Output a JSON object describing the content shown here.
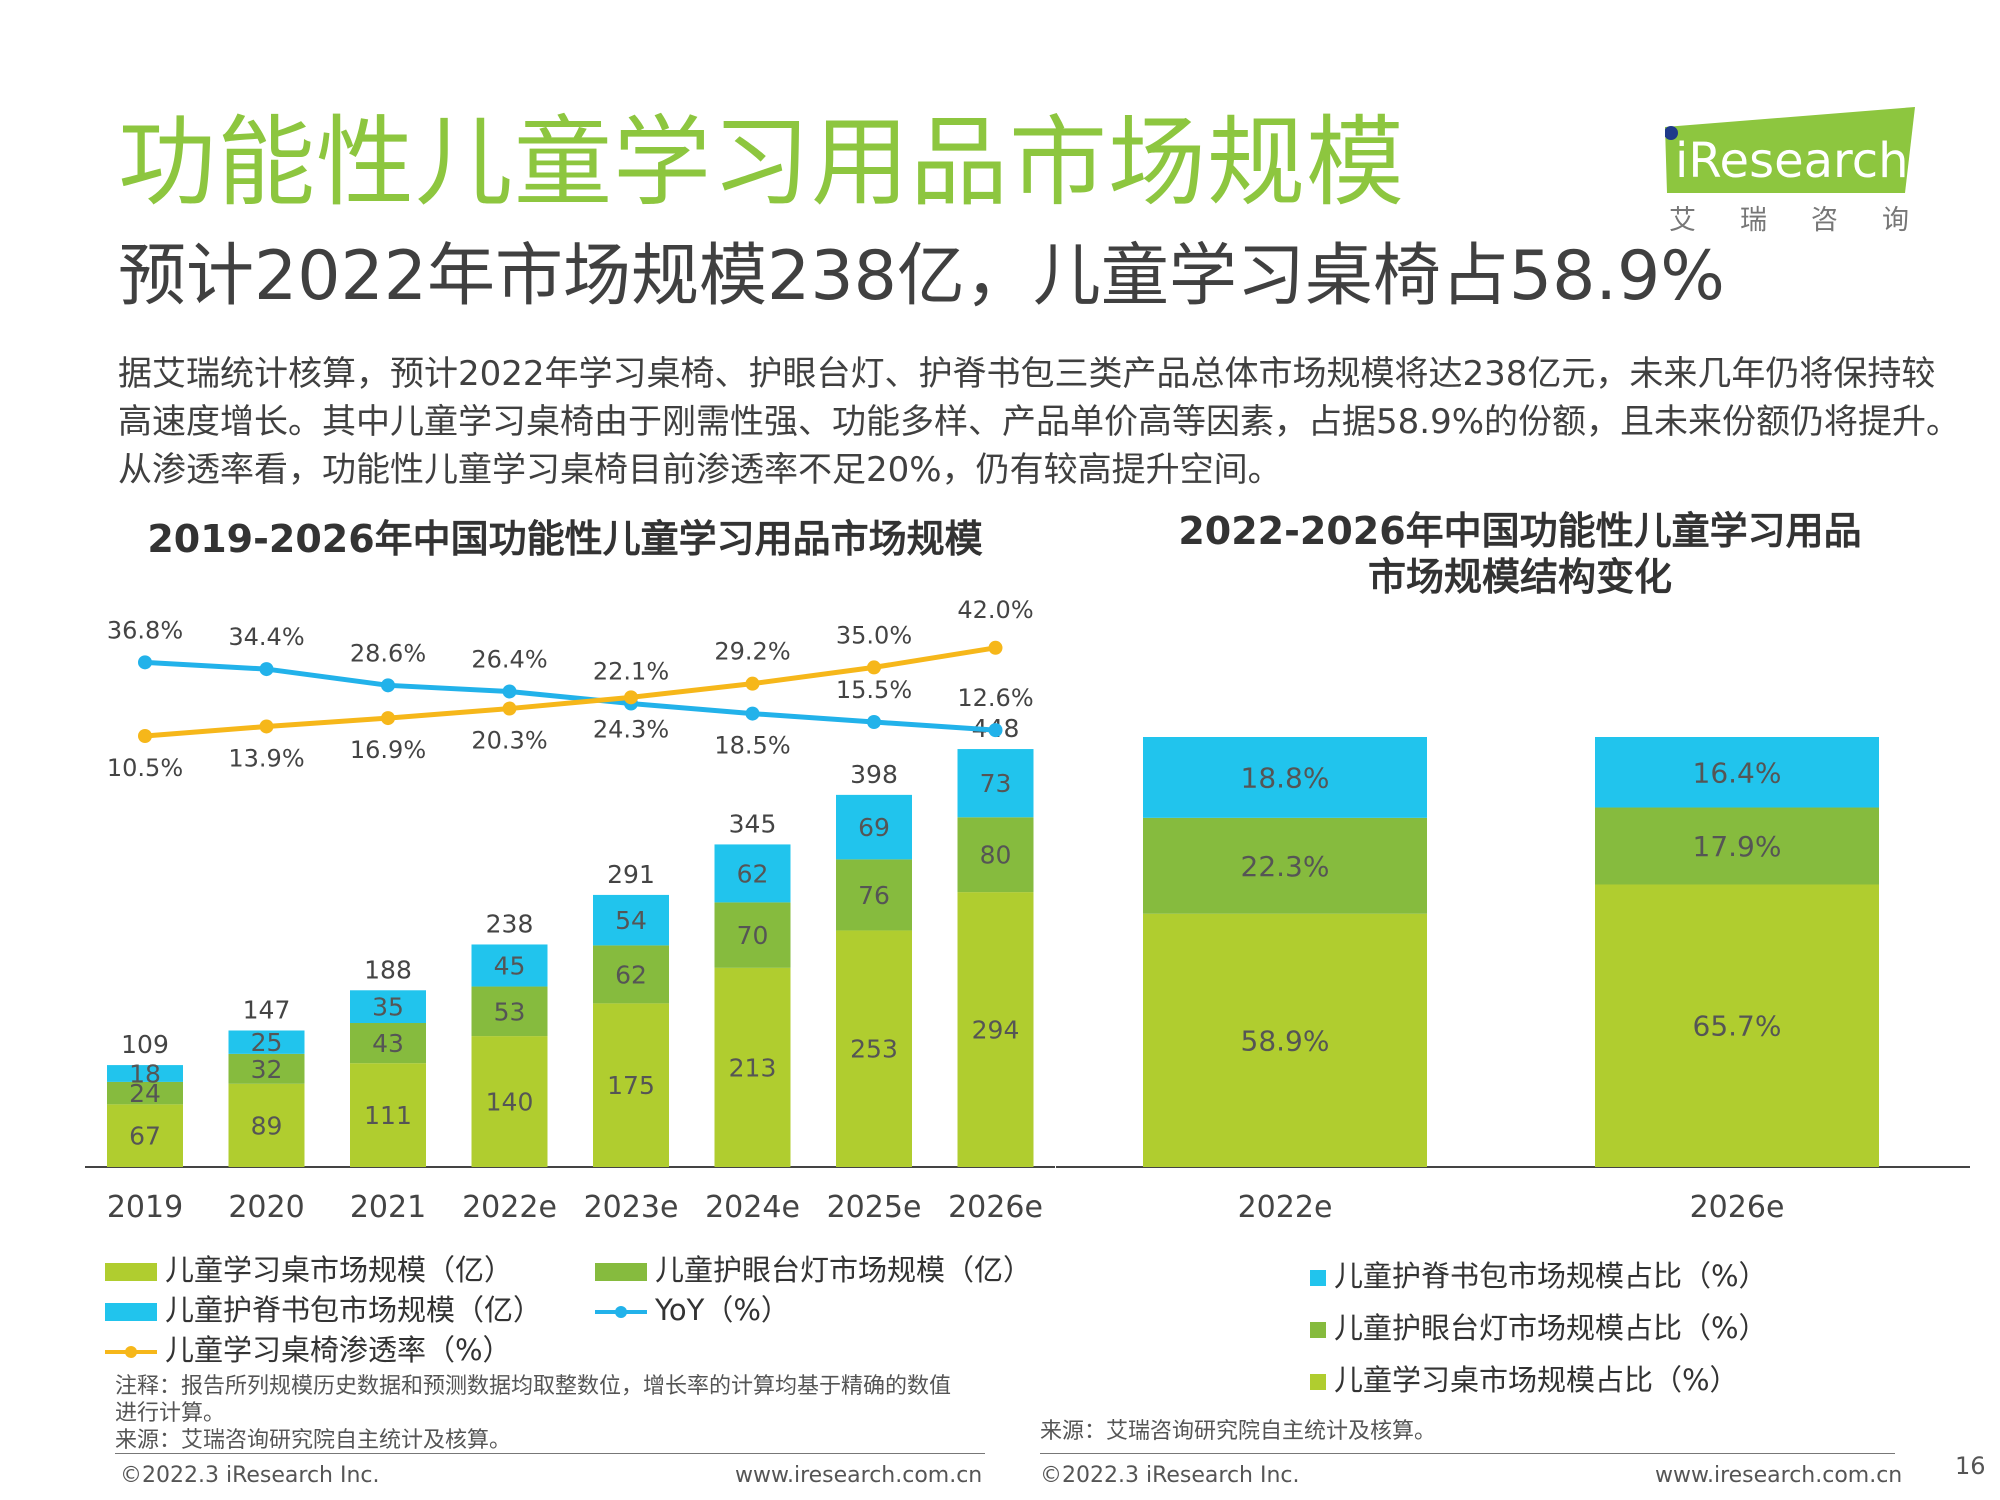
{
  "header": {
    "title": "功能性儿童学习用品市场规模",
    "subtitle": "预计2022年市场规模238亿，儿童学习桌椅占58.9%",
    "paragraph": [
      "据艾瑞统计核算，预计2022年学习桌椅、护眼台灯、护脊书包三类产品总体市场规模将达238亿元，未来几年仍将保持较",
      "高速度增长。其中儿童学习桌椅由于刚需性强、功能多样、产品单价高等因素，占据58.9%的份额，且未来份额仍将提升。",
      "从渗透率看，功能性儿童学习桌椅目前渗透率不足20%，仍有较高提升空间。"
    ]
  },
  "logo": {
    "brand": "iResearch",
    "sub": "艾 瑞 咨 询"
  },
  "colors": {
    "green_light": "#b0cd2f",
    "green_dark": "#86bb3e",
    "blue": "#21c4ed",
    "yoy_line": "#22b2ea",
    "pen_line": "#f6b71a",
    "title_green": "#8dc63f"
  },
  "chart_data": [
    {
      "type": "bar",
      "stacked": true,
      "title": "2019-2026年中国功能性儿童学习用品市场规模",
      "categories": [
        "2019",
        "2020",
        "2021",
        "2022e",
        "2023e",
        "2024e",
        "2025e",
        "2026e"
      ],
      "totals": [
        "109",
        "147",
        "188",
        "238",
        "291",
        "345",
        "398",
        "448"
      ],
      "series": [
        {
          "name": "儿童学习桌市场规模（亿）",
          "values": [
            67,
            89,
            111,
            140,
            175,
            213,
            253,
            294
          ]
        },
        {
          "name": "儿童护眼台灯市场规模（亿）",
          "values": [
            24,
            32,
            43,
            53,
            62,
            70,
            76,
            80
          ]
        },
        {
          "name": "儿童护脊书包市场规模（亿）",
          "values": [
            18,
            25,
            35,
            45,
            54,
            62,
            69,
            73
          ]
        }
      ],
      "lines": [
        {
          "name": "YoY（%）",
          "values": [
            36.8,
            34.4,
            28.6,
            26.4,
            22.1,
            18.5,
            15.5,
            12.6
          ],
          "labels": [
            "36.8%",
            "34.4%",
            "28.6%",
            "26.4%",
            "22.1%",
            "18.5%",
            "15.5%",
            "12.6%"
          ]
        },
        {
          "name": "儿童学习桌椅渗透率（%）",
          "values": [
            10.5,
            13.9,
            16.9,
            20.3,
            24.3,
            29.2,
            35.0,
            42.0
          ],
          "labels": [
            "10.5%",
            "13.9%",
            "16.9%",
            "20.3%",
            "24.3%",
            "29.2%",
            "35.0%",
            "42.0%"
          ]
        }
      ],
      "legend": [
        "儿童学习桌市场规模（亿）",
        "儿童护眼台灯市场规模（亿）",
        "儿童护脊书包市场规模（亿）",
        "YoY（%）",
        "儿童学习桌椅渗透率（%）"
      ]
    },
    {
      "type": "bar",
      "stacked": true,
      "percent": true,
      "title_lines": [
        "2022-2026年中国功能性儿童学习用品",
        "市场规模结构变化"
      ],
      "categories": [
        "2022e",
        "2026e"
      ],
      "series": [
        {
          "name": "儿童学习桌市场规模占比（%）",
          "values": [
            58.9,
            65.7
          ],
          "labels": [
            "58.9%",
            "65.7%"
          ]
        },
        {
          "name": "儿童护眼台灯市场规模占比（%）",
          "values": [
            22.3,
            17.9
          ],
          "labels": [
            "22.3%",
            "17.9%"
          ]
        },
        {
          "name": "儿童护脊书包市场规模占比（%）",
          "values": [
            18.8,
            16.4
          ],
          "labels": [
            "18.8%",
            "16.4%"
          ]
        }
      ],
      "legend": [
        "儿童护脊书包市场规模占比（%）",
        "儿童护眼台灯市场规模占比（%）",
        "儿童学习桌市场规模占比（%）"
      ]
    }
  ],
  "notes": {
    "left_note_line1": "注释：报告所列规模历史数据和预测数据均取整数位，增长率的计算均基于精确的数值",
    "left_note_line2": "进行计算。",
    "left_source": "来源：艾瑞咨询研究院自主统计及核算。",
    "right_source": "来源：艾瑞咨询研究院自主统计及核算。"
  },
  "footer": {
    "copyright": "©2022.3 iResearch Inc.",
    "url": "www.iresearch.com.cn",
    "page": "16"
  }
}
